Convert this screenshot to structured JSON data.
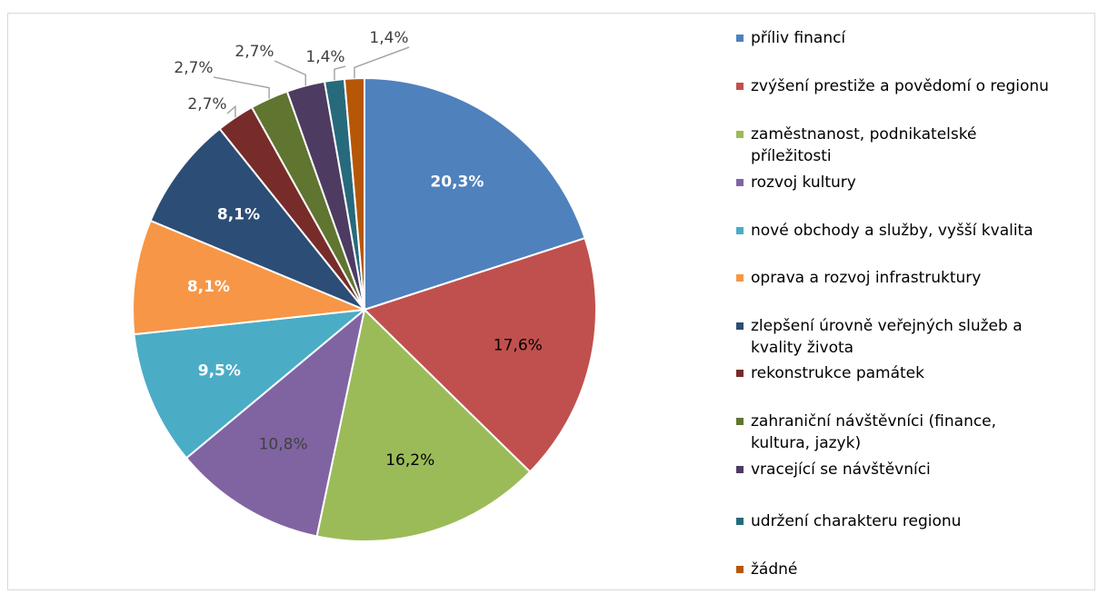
{
  "chart_data": {
    "type": "pie",
    "categories": [
      "příliv financí",
      "zvýšení prestiže a povědomí o regionu",
      "zaměstnanost, podnikatelské příležitosti",
      "rozvoj kultury",
      "nové obchody a služby, vyšší kvalita",
      "oprava a rozvoj infrastruktury",
      "zlepšení úrovně veřejných služeb a kvality života",
      "rekonstrukce památek",
      "zahraniční návštěvníci (finance, kultura, jazyk)",
      "vracející se návštěvníci",
      "udržení charakteru regionu",
      "žádné"
    ],
    "values": [
      20.3,
      17.6,
      16.2,
      10.8,
      9.5,
      8.1,
      8.1,
      2.7,
      2.7,
      2.7,
      1.4,
      1.4
    ],
    "value_labels": [
      "20,3%",
      "17,6%",
      "16,2%",
      "10,8%",
      "9,5%",
      "8,1%",
      "8,1%",
      "2,7%",
      "2,7%",
      "2,7%",
      "1,4%",
      "1,4%"
    ],
    "colors": [
      "#4f81bd",
      "#c0504d",
      "#9bbb59",
      "#8064a2",
      "#4bacc6",
      "#f79646",
      "#2c4d75",
      "#772c2a",
      "#5f7530",
      "#4d3b62",
      "#276a7c",
      "#b65708"
    ],
    "label_colors": [
      "#ffffff",
      "#000000",
      "#000000",
      "#404040",
      "#ffffff",
      "#ffffff",
      "#ffffff",
      "#404040",
      "#404040",
      "#404040",
      "#404040",
      "#404040"
    ],
    "legend": "right"
  }
}
